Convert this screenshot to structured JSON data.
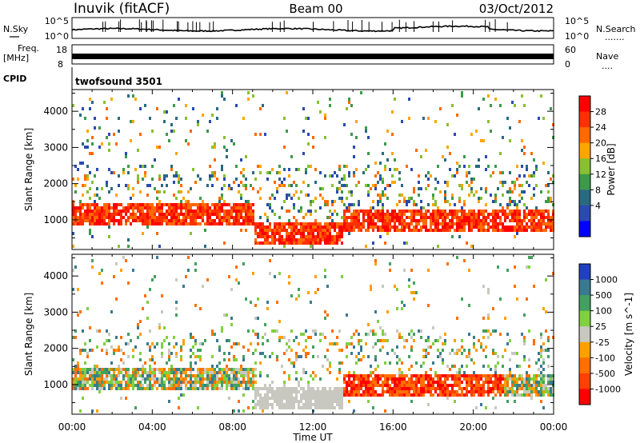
{
  "header": {
    "station": "Inuvik (fitACF)",
    "beam": "Beam 00",
    "date": "03/Oct/2012"
  },
  "strips": {
    "nsky_label": "N.Sky",
    "nsearch_label": "N.Search",
    "nsearch_dots": ".......",
    "nsky_ticks": [
      "10^5",
      "10^0"
    ],
    "nsearch_ticks": [
      "10^5",
      "10^0"
    ],
    "freq_label": "Freq.",
    "freq_unit": "[MHz]",
    "freq_ticks": [
      "18",
      "8"
    ],
    "nave_label": "Nave",
    "nave_dots": "....",
    "nave_ticks": [
      "60",
      "0"
    ],
    "cpid_label": "CPID",
    "cpid_value": "twofsound 3501"
  },
  "chart_data": [
    {
      "type": "heatmap",
      "panel": "power",
      "ylabel": "Slant Range [km]",
      "ylim": [
        180,
        4600
      ],
      "yticks": [
        "1000",
        "2000",
        "3000",
        "4000"
      ],
      "colorbar_label": "Power [dB]",
      "colorbar_ticks": [
        "28",
        "24",
        "20",
        "16",
        "12",
        "8",
        "4"
      ],
      "colorbar_colors": [
        "#ff0000",
        "#ff3000",
        "#ff6a00",
        "#ffa500",
        "#88c030",
        "#3c9a4a",
        "#2a6a80",
        "#2a4ab0",
        "#0000ff"
      ],
      "scatter_bands": [
        {
          "t_start": 0.0,
          "t_end": 9.0,
          "r_center": 1200,
          "width": 300
        },
        {
          "t_start": 9.0,
          "t_end": 13.5,
          "r_center": 700,
          "width": 300
        },
        {
          "t_start": 13.5,
          "t_end": 24.0,
          "r_center": 1050,
          "width": 300
        }
      ]
    },
    {
      "type": "heatmap",
      "panel": "velocity",
      "ylabel": "Slant Range [km]",
      "ylim": [
        180,
        4600
      ],
      "yticks": [
        "1000",
        "2000",
        "3000",
        "4000"
      ],
      "colorbar_label": "Velocity [m s^-1]",
      "colorbar_ticks": [
        "1000",
        "500",
        "100",
        "25",
        "-25",
        "-100",
        "-500",
        "-1000"
      ],
      "colorbar_colors": [
        "#2040c0",
        "#3a7a90",
        "#44a060",
        "#80d040",
        "#c8c8c0",
        "#ffa000",
        "#ff7000",
        "#ff4000",
        "#ff0000"
      ],
      "scatter_bands": [
        {
          "t_start": 0.0,
          "t_end": 9.0,
          "r_center": 1200,
          "width": 300
        },
        {
          "t_start": 9.0,
          "t_end": 13.5,
          "r_center": 700,
          "width": 300
        },
        {
          "t_start": 13.5,
          "t_end": 24.0,
          "r_center": 1050,
          "width": 300
        }
      ]
    }
  ],
  "time_axis": {
    "xlabel": "Time UT",
    "ticks": [
      "00:00",
      "04:00",
      "08:00",
      "12:00",
      "16:00",
      "20:00",
      "00:00"
    ],
    "xlim": [
      0,
      24
    ]
  }
}
